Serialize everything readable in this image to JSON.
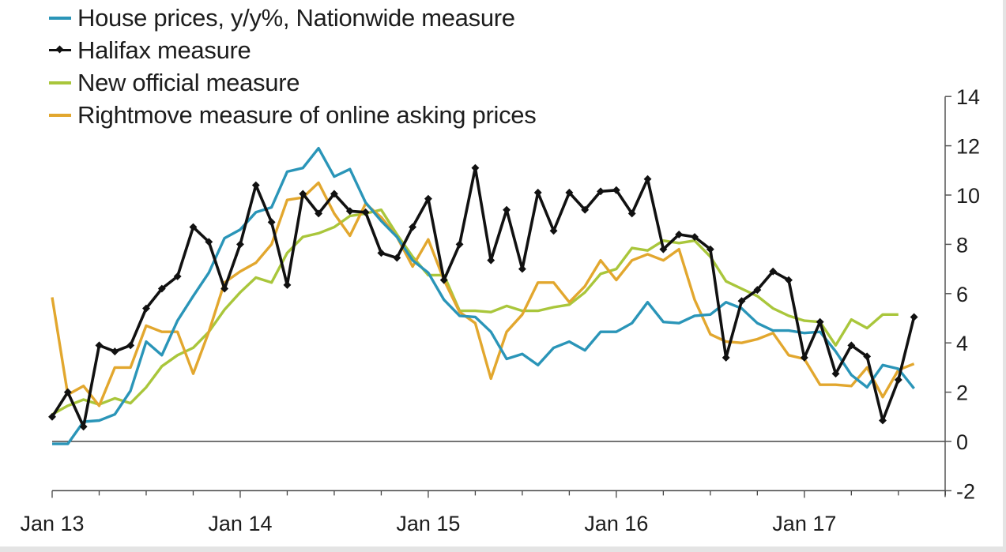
{
  "chart_data": {
    "type": "line",
    "title": "",
    "xlabel": "",
    "ylabel": "",
    "ylim": [
      -2,
      14
    ],
    "yticks": [
      "-2",
      "0",
      "2",
      "4",
      "6",
      "8",
      "10",
      "12",
      "14"
    ],
    "ytick_values": [
      -2,
      0,
      2,
      4,
      6,
      8,
      10,
      12,
      14
    ],
    "xtick_labels": [
      "Jan 13",
      "Jan 14",
      "Jan 15",
      "Jan 16",
      "Jan 17"
    ],
    "x_start": "Jan 13",
    "x_unit": "month",
    "x_months_span": 57,
    "y_axis_position": "right",
    "legend_position": "top-left",
    "grid": false,
    "series": [
      {
        "name": "House prices, y/y%, Nationwide measure",
        "color": "#2a95b8",
        "marker": "none",
        "values": [
          -0.1,
          -0.1,
          0.8,
          0.85,
          1.1,
          2.05,
          4.05,
          3.5,
          4.9,
          5.9,
          6.85,
          8.25,
          8.6,
          9.3,
          9.5,
          10.95,
          11.1,
          11.9,
          10.75,
          11.05,
          9.7,
          8.95,
          8.3,
          7.35,
          6.85,
          5.75,
          5.1,
          5.05,
          4.45,
          3.35,
          3.55,
          3.1,
          3.8,
          4.05,
          3.7,
          4.45,
          4.45,
          4.8,
          5.65,
          4.85,
          4.8,
          5.1,
          5.15,
          5.65,
          5.4,
          4.8,
          4.5,
          4.5,
          4.4,
          4.45,
          3.65,
          2.7,
          2.2,
          3.1,
          2.95,
          2.15
        ]
      },
      {
        "name": "Halifax measure",
        "color": "#111111",
        "marker": "diamond",
        "values": [
          1.0,
          2.0,
          0.6,
          3.9,
          3.65,
          3.9,
          5.4,
          6.2,
          6.7,
          8.7,
          8.1,
          6.2,
          8.0,
          10.4,
          8.9,
          6.35,
          10.05,
          9.25,
          10.05,
          9.35,
          9.3,
          7.65,
          7.45,
          8.7,
          9.85,
          6.55,
          8.0,
          11.1,
          7.35,
          9.4,
          7.0,
          10.1,
          8.55,
          10.1,
          9.4,
          10.15,
          10.2,
          9.25,
          10.65,
          7.8,
          8.4,
          8.3,
          7.8,
          3.4,
          5.7,
          6.15,
          6.9,
          6.55,
          3.4,
          4.85,
          2.75,
          3.9,
          3.45,
          0.85,
          2.5,
          5.05
        ]
      },
      {
        "name": "New official measure",
        "color": "#a9c63b",
        "marker": "none",
        "values": [
          1.1,
          1.45,
          1.7,
          1.5,
          1.75,
          1.55,
          2.2,
          3.05,
          3.5,
          3.8,
          4.45,
          5.35,
          6.05,
          6.65,
          6.45,
          7.65,
          8.3,
          8.45,
          8.7,
          9.15,
          9.25,
          9.4,
          8.4,
          7.5,
          6.75,
          6.75,
          5.3,
          5.3,
          5.25,
          5.5,
          5.3,
          5.3,
          5.45,
          5.55,
          6.05,
          6.8,
          7.0,
          7.85,
          7.75,
          8.15,
          8.05,
          8.15,
          7.5,
          6.5,
          6.2,
          5.9,
          5.4,
          5.1,
          4.9,
          4.85,
          3.9,
          4.95,
          4.6,
          5.15,
          5.15
        ]
      },
      {
        "name": "Rightmove measure of online asking prices",
        "color": "#e2a72e",
        "marker": "none",
        "values": [
          5.85,
          1.9,
          2.25,
          1.45,
          3.0,
          3.0,
          4.7,
          4.45,
          4.45,
          2.75,
          4.45,
          6.45,
          6.9,
          7.25,
          8.0,
          9.8,
          9.9,
          10.5,
          9.25,
          8.35,
          9.65,
          9.1,
          8.3,
          7.1,
          8.2,
          6.55,
          5.25,
          4.8,
          2.55,
          4.45,
          5.15,
          6.45,
          6.45,
          5.65,
          6.3,
          7.35,
          6.55,
          7.35,
          7.6,
          7.35,
          7.8,
          5.75,
          4.35,
          4.05,
          4.0,
          4.15,
          4.4,
          3.5,
          3.35,
          2.3,
          2.3,
          2.25,
          3.0,
          1.8,
          2.9,
          3.15
        ]
      }
    ]
  }
}
